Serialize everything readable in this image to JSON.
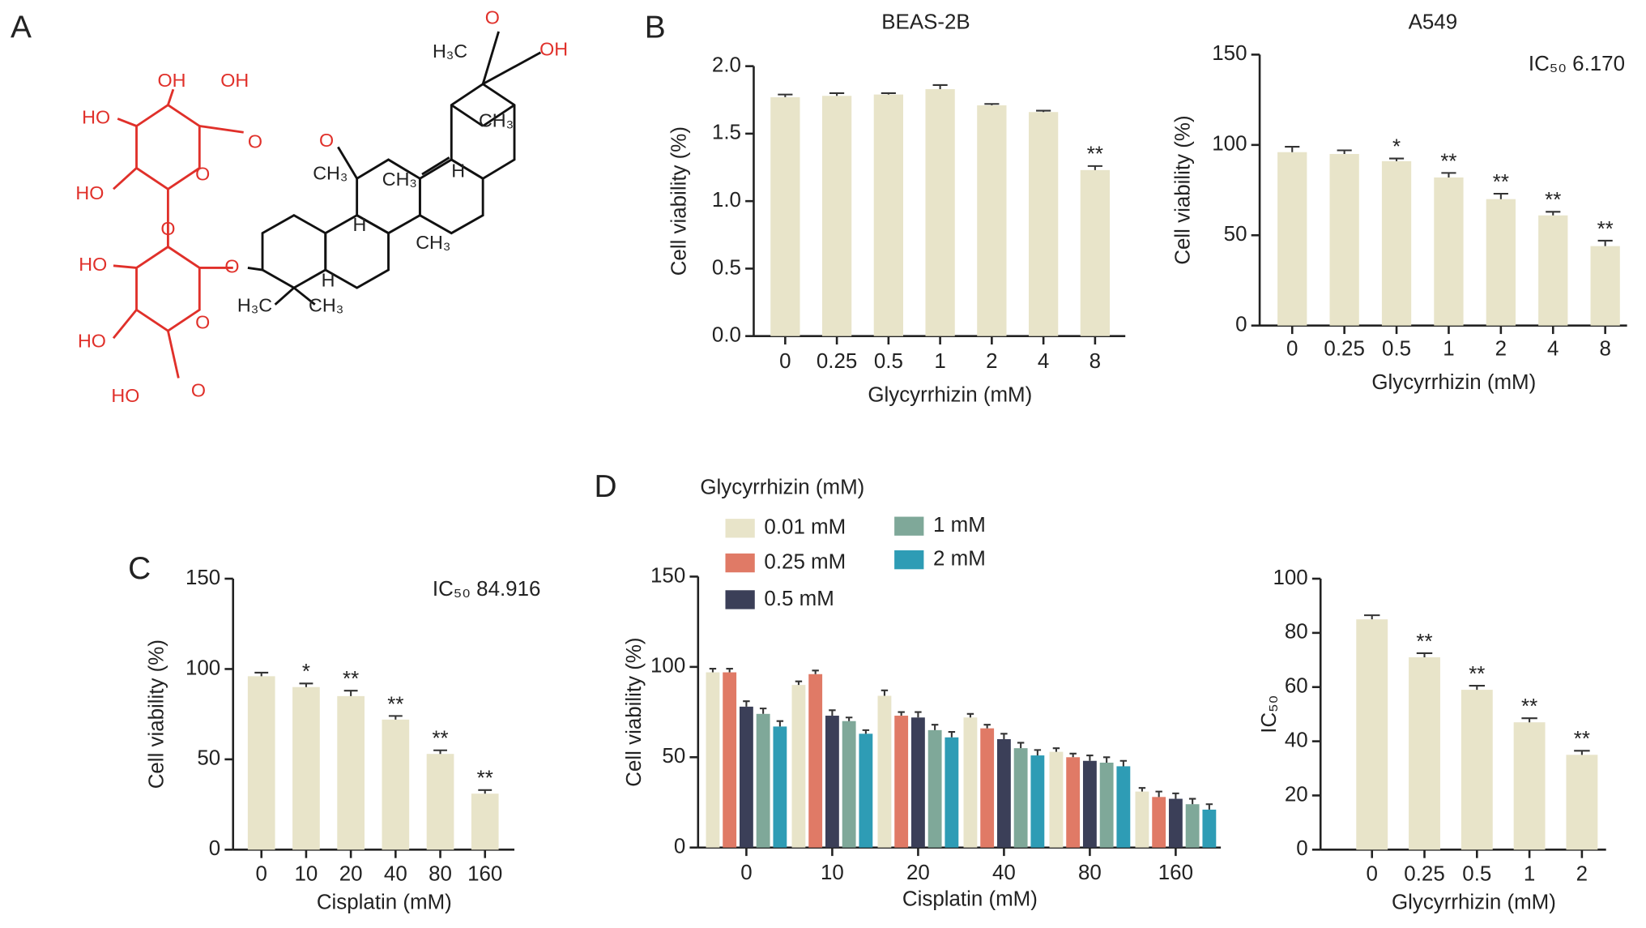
{
  "panel_labels": [
    "A",
    "B",
    "C",
    "D"
  ],
  "structure": {
    "labels": [
      "OH",
      "OH",
      "HO",
      "O",
      "HO",
      "O",
      "O",
      "HO",
      "O",
      "O",
      "HO",
      "HO",
      "O",
      "O",
      "OH",
      "O",
      "H₃C",
      "CH₃",
      "CH₃",
      "CH₃",
      "H",
      "H",
      "CH₃",
      "H",
      "H₃C",
      "CH₃"
    ]
  },
  "chart_data": [
    {
      "type": "bar",
      "title": "BEAS-2B",
      "x_label": "Glycyrrhizin (mM)",
      "y_label": "Cell viability (%)",
      "categories": [
        "0",
        "0.25",
        "0.5",
        "1",
        "2",
        "4",
        "8"
      ],
      "values": [
        1.77,
        1.78,
        1.79,
        1.83,
        1.71,
        1.66,
        1.23
      ],
      "errors": [
        0.02,
        0.02,
        0.01,
        0.03,
        0.01,
        0.01,
        0.03
      ],
      "significance": [
        null,
        null,
        null,
        null,
        null,
        null,
        "**"
      ],
      "color": "#e8e4c9",
      "ylim": [
        0,
        2
      ],
      "yticks": [
        {
          "value": 0,
          "label": "0.0"
        },
        0.5,
        {
          "value": 1,
          "label": "1.0"
        },
        1.5,
        {
          "value": 2,
          "label": "2.0"
        }
      ]
    },
    {
      "type": "bar",
      "title": "A549",
      "annotation": "IC₅₀ 6.170",
      "x_label": "Glycyrrhizin (mM)",
      "y_label": "Cell viability (%)",
      "categories": [
        "0",
        "0.25",
        "0.5",
        "1",
        "2",
        "4",
        "8"
      ],
      "values": [
        96,
        95,
        91,
        82,
        70,
        61,
        44
      ],
      "errors": [
        3,
        2,
        1.5,
        2.5,
        3,
        2,
        3
      ],
      "significance": [
        null,
        null,
        "*",
        "**",
        "**",
        "**",
        "**"
      ],
      "color": "#e8e4c9",
      "ylim": [
        0,
        150
      ],
      "yticks": [
        0,
        50,
        100,
        150
      ]
    },
    {
      "type": "bar",
      "annotation": "IC₅₀ 84.916",
      "x_label": "Cisplatin (mM)",
      "y_label": "Cell viability (%)",
      "categories": [
        "0",
        "10",
        "20",
        "40",
        "80",
        "160"
      ],
      "values": [
        96,
        90,
        85,
        72,
        53,
        31
      ],
      "errors": [
        2,
        2,
        3,
        2,
        2,
        2
      ],
      "significance": [
        null,
        "*",
        "**",
        "**",
        "**",
        "**"
      ],
      "color": "#e8e4c9",
      "ylim": [
        0,
        150
      ],
      "yticks": [
        0,
        50,
        100,
        150
      ]
    },
    {
      "type": "grouped-bar",
      "legend_title": "Glycyrrhizin (mM)",
      "x_label": "Cisplatin (mM)",
      "y_label": "Cell viability (%)",
      "categories": [
        "0",
        "10",
        "20",
        "40",
        "80",
        "160"
      ],
      "series": [
        {
          "name": "0.01 mM",
          "color": "#e8e4c9",
          "values": [
            97,
            90,
            84,
            72,
            53,
            31
          ],
          "errors": [
            2,
            2,
            3,
            2,
            2,
            2
          ]
        },
        {
          "name": "0.25 mM",
          "color": "#e07a66",
          "values": [
            97,
            96,
            73,
            66,
            50,
            28
          ],
          "errors": [
            2,
            2,
            2,
            2,
            2,
            3
          ]
        },
        {
          "name": "0.5 mM",
          "color": "#3b3f58",
          "values": [
            78,
            73,
            72,
            60,
            48,
            27
          ],
          "errors": [
            3,
            3,
            3,
            3,
            3,
            3
          ]
        },
        {
          "name": "1 mM",
          "color": "#7fa899",
          "values": [
            74,
            70,
            65,
            55,
            47,
            24
          ],
          "errors": [
            3,
            2,
            3,
            3,
            3,
            3
          ]
        },
        {
          "name": "2 mM",
          "color": "#2e9cb5",
          "values": [
            67,
            63,
            61,
            51,
            45,
            21
          ],
          "errors": [
            3,
            2,
            3,
            3,
            3,
            3
          ]
        }
      ],
      "ylim": [
        0,
        150
      ],
      "yticks": [
        0,
        50,
        100,
        150
      ]
    },
    {
      "type": "bar",
      "x_label": "Glycyrrhizin (mM)",
      "y_label": "IC₅₀",
      "categories": [
        "0",
        "0.25",
        "0.5",
        "1",
        "2"
      ],
      "values": [
        85,
        71,
        59,
        47,
        35
      ],
      "errors": [
        1.5,
        1.5,
        1.5,
        1.5,
        1.5
      ],
      "significance": [
        null,
        "**",
        "**",
        "**",
        "**"
      ],
      "color": "#e8e4c9",
      "ylim": [
        0,
        100
      ],
      "yticks": [
        0,
        20,
        40,
        60,
        80,
        100
      ]
    }
  ]
}
